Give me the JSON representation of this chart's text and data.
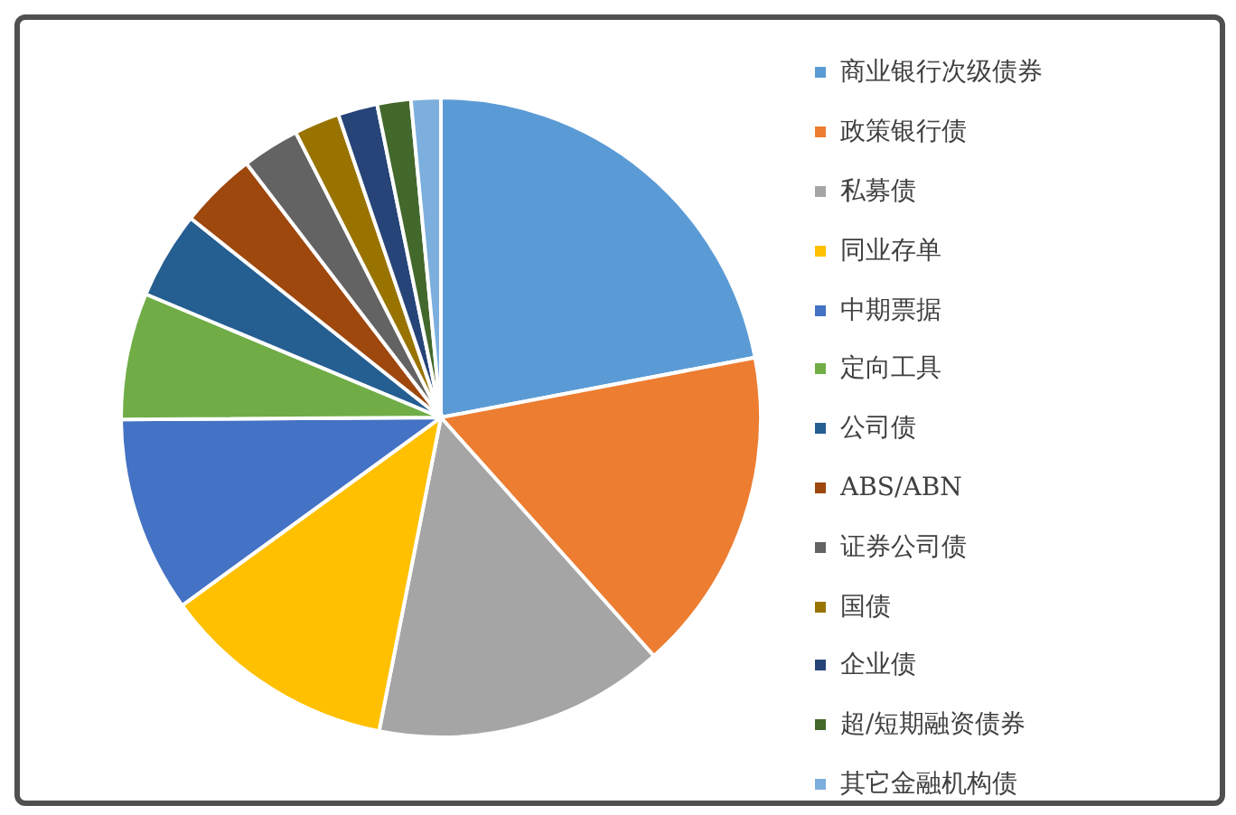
{
  "chart_data": {
    "type": "pie",
    "categories": [
      "商业银行次级债券",
      "政策银行债",
      "私募债",
      "同业存单",
      "中期票据",
      "定向工具",
      "公司债",
      "ABS/ABN",
      "证券公司债",
      "国债",
      "企业债",
      "超/短期融资债券",
      "其它金融机构债"
    ],
    "values": [
      22.0,
      16.4,
      14.7,
      11.9,
      9.9,
      6.4,
      4.4,
      3.9,
      2.9,
      2.3,
      2.0,
      1.7,
      1.5
    ],
    "colors": [
      "#5b9bd5",
      "#ed7d31",
      "#a5a5a5",
      "#ffc000",
      "#4472c4",
      "#70ad47",
      "#255e91",
      "#9e480e",
      "#636363",
      "#997300",
      "#264478",
      "#43682b",
      "#7cafdd"
    ],
    "legend": "right"
  }
}
